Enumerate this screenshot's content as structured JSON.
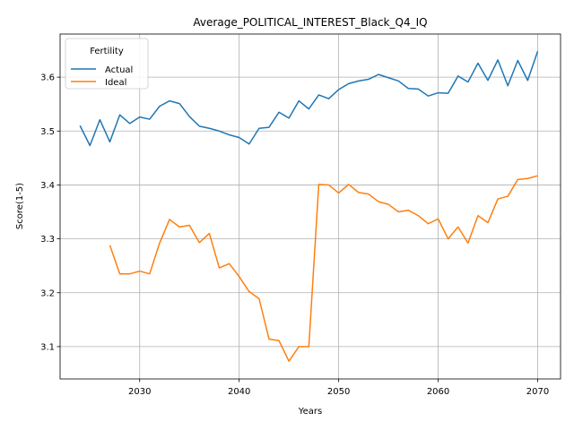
{
  "chart_data": {
    "type": "line",
    "title": "Average_POLITICAL_INTEREST_Black_Q4_IQ",
    "xlabel": "Years",
    "ylabel": "Score(1-5)",
    "xlim": [
      2022,
      2072.3
    ],
    "ylim": [
      3.04,
      3.68
    ],
    "xticks": [
      2030,
      2040,
      2050,
      2060,
      2070
    ],
    "yticks": [
      3.1,
      3.2,
      3.3,
      3.4,
      3.5,
      3.6
    ],
    "grid": true,
    "legend": {
      "title": "Fertility",
      "placement": "top-left"
    },
    "series": [
      {
        "name": "Actual",
        "color": "#1f77b4",
        "x": [
          2024,
          2025,
          2026,
          2027,
          2028,
          2029,
          2030,
          2031,
          2032,
          2033,
          2034,
          2035,
          2036,
          2037,
          2038,
          2039,
          2040,
          2041,
          2042,
          2043,
          2044,
          2045,
          2046,
          2047,
          2048,
          2049,
          2050,
          2051,
          2052,
          2053,
          2054,
          2055,
          2056,
          2057,
          2058,
          2059,
          2060,
          2061,
          2062,
          2063,
          2064,
          2065,
          2066,
          2067,
          2068,
          2069,
          2070
        ],
        "values": [
          3.51,
          3.473,
          3.521,
          3.48,
          3.53,
          3.514,
          3.526,
          3.522,
          3.546,
          3.556,
          3.551,
          3.527,
          3.509,
          3.505,
          3.5,
          3.493,
          3.488,
          3.476,
          3.505,
          3.507,
          3.535,
          3.524,
          3.556,
          3.541,
          3.567,
          3.56,
          3.577,
          3.588,
          3.593,
          3.596,
          3.605,
          3.599,
          3.593,
          3.579,
          3.578,
          3.565,
          3.571,
          3.57,
          3.602,
          3.591,
          3.626,
          3.594,
          3.632,
          3.584,
          3.631,
          3.594,
          3.648
        ]
      },
      {
        "name": "Ideal",
        "color": "#ff7f0e",
        "x": [
          2027,
          2028,
          2029,
          2030,
          2031,
          2032,
          2033,
          2034,
          2035,
          2036,
          2037,
          2038,
          2039,
          2040,
          2041,
          2042,
          2043,
          2044,
          2045,
          2046,
          2047,
          2048,
          2049,
          2050,
          2051,
          2052,
          2053,
          2054,
          2055,
          2056,
          2057,
          2058,
          2059,
          2060,
          2061,
          2062,
          2063,
          2064,
          2065,
          2066,
          2067,
          2068,
          2069,
          2070
        ],
        "values": [
          3.288,
          3.235,
          3.235,
          3.24,
          3.235,
          3.292,
          3.336,
          3.322,
          3.325,
          3.293,
          3.31,
          3.246,
          3.254,
          3.23,
          3.202,
          3.189,
          3.114,
          3.111,
          3.073,
          3.1,
          3.1,
          3.401,
          3.4,
          3.385,
          3.401,
          3.386,
          3.383,
          3.369,
          3.364,
          3.35,
          3.353,
          3.343,
          3.328,
          3.337,
          3.3,
          3.322,
          3.292,
          3.343,
          3.33,
          3.374,
          3.379,
          3.41,
          3.412,
          3.417
        ]
      }
    ]
  }
}
